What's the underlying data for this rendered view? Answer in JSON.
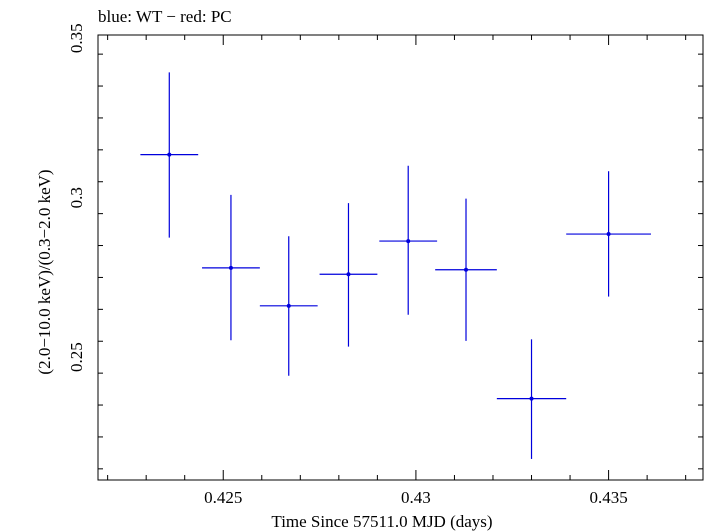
{
  "chart_data": {
    "type": "scatter",
    "title": "blue: WT − red: PC",
    "xlabel": "Time Since 57511.0 MJD (days)",
    "ylabel": "(2.0−10.0 keV)/(0.3−2.0 keV)",
    "xlim": [
      0.42175,
      0.43745
    ],
    "ylim": [
      0.2115,
      0.351
    ],
    "x_ticks": [
      0.425,
      0.43,
      0.435
    ],
    "x_tick_labels": [
      "0.425",
      "0.43",
      "0.435"
    ],
    "y_ticks": [
      0.25,
      0.3,
      0.35
    ],
    "y_tick_labels": [
      "0.25",
      "0.3",
      "0.35"
    ],
    "grid": false,
    "series": [
      {
        "color": "#0000dd",
        "points": [
          {
            "x": 0.4236,
            "y": 0.3135,
            "xerr": 0.00075,
            "ylo": 0.2875,
            "yhi": 0.3393
          },
          {
            "x": 0.4252,
            "y": 0.278,
            "xerr": 0.00075,
            "ylo": 0.2553,
            "yhi": 0.3009
          },
          {
            "x": 0.4267,
            "y": 0.2661,
            "xerr": 0.00075,
            "ylo": 0.2442,
            "yhi": 0.2879
          },
          {
            "x": 0.42825,
            "y": 0.276,
            "xerr": 0.00075,
            "ylo": 0.2533,
            "yhi": 0.2983
          },
          {
            "x": 0.4298,
            "y": 0.2864,
            "xerr": 0.00075,
            "ylo": 0.2633,
            "yhi": 0.31
          },
          {
            "x": 0.4313,
            "y": 0.2774,
            "xerr": 0.0008,
            "ylo": 0.2551,
            "yhi": 0.2997
          },
          {
            "x": 0.433,
            "y": 0.237,
            "xerr": 0.0009,
            "ylo": 0.2181,
            "yhi": 0.2556
          },
          {
            "x": 0.435,
            "y": 0.2886,
            "xerr": 0.0011,
            "ylo": 0.269,
            "yhi": 0.3083
          }
        ]
      }
    ]
  }
}
